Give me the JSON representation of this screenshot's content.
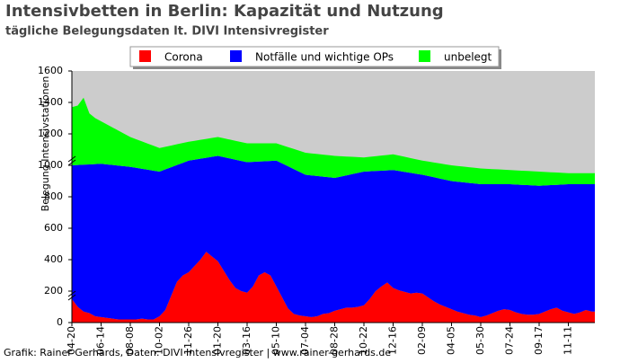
{
  "chart_data": {
    "type": "area",
    "stacked": true,
    "title": "Intensivbetten in Berlin: Kapazität und Nutzung",
    "subtitle": "tägliche Belegungsdaten lt. DIVI Intensivregister",
    "y_label": "Belegung Intensivstationen",
    "footer": "Grafik: Rainer Gerhards, Daten: DIVI Intensivregister | www.rainer-gerhards.de",
    "background": "#cccccc",
    "ylim": [
      0,
      1600
    ],
    "yticks": [
      0,
      200,
      400,
      600,
      800,
      1000,
      1200,
      1400,
      1600
    ],
    "categories": [
      "04-20",
      null,
      null,
      null,
      null,
      "06-14",
      null,
      null,
      null,
      null,
      "08-08",
      null,
      null,
      null,
      null,
      "10-02",
      null,
      null,
      null,
      null,
      "11-26",
      null,
      null,
      null,
      null,
      "01-20",
      null,
      null,
      null,
      null,
      "03-16",
      null,
      null,
      null,
      null,
      "05-10",
      null,
      null,
      null,
      null,
      "07-04",
      null,
      null,
      null,
      null,
      "08-28",
      null,
      null,
      null,
      null,
      "10-22",
      null,
      null,
      null,
      null,
      "12-16",
      null,
      null,
      null,
      null,
      "02-09",
      null,
      null,
      null,
      null,
      "04-05",
      null,
      null,
      null,
      null,
      "05-30",
      null,
      null,
      null,
      null,
      "07-24",
      null,
      null,
      null,
      null,
      "09-17",
      null,
      null,
      null,
      null,
      "11-11",
      null,
      null,
      null,
      null
    ],
    "series": [
      {
        "name": "Corona",
        "color": "#ff0000",
        "values": [
          150,
          100,
          70,
          60,
          40,
          35,
          30,
          25,
          20,
          20,
          20,
          20,
          25,
          20,
          20,
          40,
          80,
          170,
          260,
          300,
          320,
          360,
          400,
          450,
          420,
          390,
          330,
          270,
          220,
          200,
          190,
          230,
          300,
          320,
          300,
          230,
          160,
          90,
          55,
          45,
          40,
          35,
          40,
          55,
          60,
          75,
          85,
          95,
          95,
          100,
          110,
          150,
          200,
          230,
          255,
          220,
          205,
          195,
          185,
          190,
          185,
          160,
          135,
          115,
          100,
          85,
          70,
          60,
          50,
          45,
          35,
          45,
          60,
          75,
          85,
          80,
          65,
          55,
          50,
          50,
          55,
          70,
          85,
          95,
          75,
          65,
          55,
          65,
          80,
          70
        ]
      },
      {
        "name": "Notfälle und wichtige OPs",
        "color": "#0000ff",
        "values": [
          850,
          902,
          934,
          946,
          968,
          975,
          976,
          977,
          978,
          974,
          970,
          964,
          953,
          952,
          946,
          920,
          894,
          818,
          742,
          716,
          710,
          676,
          642,
          598,
          634,
          670,
          722,
          774,
          816,
          828,
          830,
          792,
          724,
          706,
          728,
          800,
          852,
          904,
          921,
          913,
          900,
          901,
          892,
          873,
          864,
          845,
          843,
          841,
          849,
          852,
          850,
          812,
          764,
          736,
          713,
          750,
          759,
          763,
          767,
          756,
          755,
          772,
          789,
          801,
          808,
          815,
          826,
          832,
          838,
          839,
          845,
          835,
          820,
          805,
          795,
          800,
          813,
          821,
          824,
          822,
          815,
          802,
          789,
          781,
          803,
          815,
          825,
          815,
          800,
          810
        ]
      },
      {
        "name": "unbelegt",
        "color": "#00ff00",
        "values": [
          370,
          378,
          426,
          324,
          292,
          270,
          254,
          238,
          222,
          206,
          190,
          182,
          174,
          166,
          158,
          150,
          144,
          138,
          132,
          126,
          120,
          120,
          120,
          120,
          120,
          120,
          120,
          120,
          120,
          120,
          120,
          118,
          116,
          114,
          112,
          110,
          116,
          122,
          128,
          134,
          140,
          140,
          140,
          140,
          140,
          140,
          130,
          120,
          110,
          100,
          90,
          92,
          94,
          96,
          98,
          100,
          98,
          96,
          94,
          92,
          90,
          92,
          94,
          96,
          98,
          100,
          100,
          100,
          100,
          100,
          100,
          98,
          96,
          94,
          92,
          90,
          90,
          90,
          90,
          90,
          90,
          86,
          82,
          78,
          74,
          70,
          70,
          70,
          70,
          70
        ]
      }
    ]
  }
}
